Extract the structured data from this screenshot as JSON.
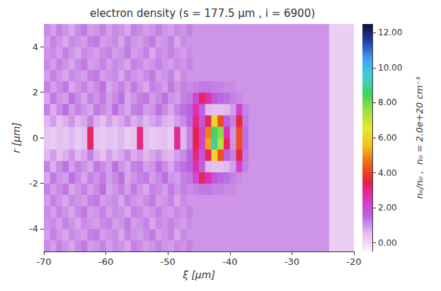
{
  "chart_data": {
    "type": "heatmap",
    "title": "electron density (s = 177.5 µm , i = 6900)",
    "x_label": "ξ [µm]",
    "y_label": "r [µm]",
    "xlim": [
      -70,
      -20
    ],
    "xticks": [
      -70,
      -60,
      -50,
      -40,
      -30,
      -20
    ],
    "ylim": [
      -5,
      5
    ],
    "yticks": [
      -4,
      -2,
      0,
      2,
      4
    ],
    "x": [
      -69.5,
      -68.5,
      -67.5,
      -66.5,
      -65.5,
      -64.5,
      -63.5,
      -62.5,
      -61.5,
      -60.5,
      -59.5,
      -58.5,
      -57.5,
      -56.5,
      -55.5,
      -54.5,
      -53.5,
      -52.5,
      -51.5,
      -50.5,
      -49.5,
      -48.5,
      -47.5,
      -46.5,
      -45.5,
      -44.5,
      -43.5,
      -42.5,
      -41.5,
      -40.5,
      -39.5,
      -38.5,
      -37.5,
      -36.5,
      -35.5,
      -34.5,
      -33.5,
      -32.5,
      -31.5,
      -30.5,
      -29.5,
      -28.5,
      -27.5,
      -26.5,
      -25.5,
      -24.5,
      -23.5,
      -22.5,
      -21.5,
      -20.5
    ],
    "y": [
      -4.75,
      -4.25,
      -3.75,
      -3.25,
      -2.75,
      -2.25,
      -1.75,
      -1.25,
      -0.75,
      -0.25,
      0.25,
      0.75,
      1.25,
      1.75,
      2.25,
      2.75,
      3.25,
      3.75,
      4.25,
      4.75
    ],
    "values": [
      [
        1.1,
        0.9,
        1.2,
        1.0,
        0.8,
        1.1,
        1.3,
        0.9,
        1.0,
        1.2,
        0.9,
        1.1,
        1.0,
        0.8,
        1.2,
        1.1,
        0.9,
        1.0,
        1.2,
        1.0,
        0.9,
        1.1,
        1.0,
        1.2,
        1.0,
        1.0,
        1.0,
        1.0,
        1.0,
        1.0,
        1.0,
        1.0,
        1.0,
        1.0,
        1.0,
        1.0,
        1.0,
        1.0,
        1.0,
        1.0,
        1.0,
        1.0,
        1.0,
        1.0,
        1.0,
        1.0,
        0.2,
        0.2,
        0.2,
        0.2
      ],
      [
        0.9,
        1.2,
        1.0,
        0.8,
        1.1,
        1.0,
        0.9,
        1.2,
        1.3,
        0.9,
        1.0,
        1.1,
        0.8,
        1.2,
        1.0,
        0.9,
        1.1,
        1.3,
        0.9,
        1.0,
        1.2,
        0.8,
        1.1,
        1.0,
        1.0,
        1.0,
        1.0,
        1.0,
        1.0,
        1.0,
        1.0,
        1.0,
        1.0,
        1.0,
        1.0,
        1.0,
        1.0,
        1.0,
        1.0,
        1.0,
        1.0,
        1.0,
        1.0,
        1.0,
        1.0,
        1.0,
        0.2,
        0.2,
        0.2,
        0.2
      ],
      [
        1.0,
        1.1,
        0.9,
        1.2,
        1.0,
        0.8,
        1.1,
        1.0,
        0.9,
        1.1,
        1.2,
        0.9,
        1.0,
        1.3,
        0.9,
        1.0,
        1.2,
        0.8,
        1.1,
        1.0,
        1.2,
        1.0,
        0.9,
        1.1,
        1.0,
        1.0,
        1.0,
        1.0,
        1.0,
        1.0,
        1.0,
        1.0,
        1.0,
        1.0,
        1.0,
        1.0,
        1.0,
        1.0,
        1.0,
        1.0,
        1.0,
        1.0,
        1.0,
        1.0,
        1.0,
        1.0,
        0.2,
        0.2,
        0.2,
        0.2
      ],
      [
        1.1,
        0.9,
        1.2,
        1.0,
        0.8,
        1.1,
        1.3,
        0.9,
        1.0,
        1.2,
        0.9,
        1.1,
        1.0,
        0.8,
        1.2,
        1.1,
        0.9,
        1.0,
        1.2,
        1.0,
        0.9,
        1.1,
        1.0,
        1.2,
        1.0,
        1.0,
        1.0,
        1.0,
        1.0,
        1.0,
        1.0,
        1.0,
        1.0,
        1.0,
        1.0,
        1.0,
        1.0,
        1.0,
        1.0,
        1.0,
        1.0,
        1.0,
        1.0,
        1.0,
        1.0,
        1.0,
        0.2,
        0.2,
        0.2,
        0.2
      ],
      [
        0.9,
        1.2,
        1.0,
        0.8,
        1.1,
        1.0,
        0.9,
        1.2,
        1.3,
        0.9,
        1.0,
        1.1,
        0.8,
        1.2,
        1.0,
        0.9,
        1.1,
        1.3,
        0.9,
        1.0,
        1.2,
        0.8,
        1.1,
        1.0,
        1.0,
        1.0,
        1.0,
        1.0,
        1.0,
        1.0,
        1.0,
        1.0,
        1.0,
        1.0,
        1.0,
        1.0,
        1.0,
        1.0,
        1.0,
        1.0,
        1.0,
        1.0,
        1.0,
        1.0,
        1.0,
        1.0,
        0.2,
        0.2,
        0.2,
        0.2
      ],
      [
        1.2,
        0.9,
        1.1,
        1.3,
        0.8,
        1.0,
        1.2,
        0.9,
        1.1,
        1.4,
        0.8,
        1.0,
        1.2,
        0.9,
        1.3,
        1.0,
        0.8,
        1.2,
        1.1,
        0.9,
        1.3,
        1.0,
        1.2,
        1.1,
        1.2,
        1.3,
        1.3,
        1.2,
        1.2,
        1.1,
        1.1,
        1.0,
        1.0,
        1.0,
        1.0,
        1.0,
        1.0,
        1.0,
        1.0,
        1.0,
        1.0,
        1.0,
        1.0,
        1.0,
        1.0,
        1.0,
        0.2,
        0.2,
        0.2,
        0.2
      ],
      [
        0.8,
        1.3,
        1.0,
        0.9,
        1.4,
        1.1,
        0.8,
        1.2,
        1.0,
        1.3,
        0.9,
        1.1,
        1.4,
        0.8,
        1.0,
        1.2,
        1.3,
        0.9,
        1.1,
        1.4,
        1.0,
        0.9,
        1.2,
        1.3,
        2.0,
        3.2,
        2.6,
        1.8,
        1.5,
        1.4,
        1.2,
        1.1,
        1.0,
        1.0,
        1.0,
        1.0,
        1.0,
        1.0,
        1.0,
        1.0,
        1.0,
        1.0,
        1.0,
        1.0,
        1.0,
        1.0,
        0.2,
        0.2,
        0.2,
        0.2
      ],
      [
        1.2,
        0.7,
        1.1,
        1.4,
        0.9,
        1.2,
        1.0,
        0.8,
        1.3,
        1.1,
        0.9,
        1.4,
        1.0,
        0.8,
        1.2,
        1.3,
        0.9,
        1.0,
        1.4,
        1.1,
        0.8,
        1.2,
        1.4,
        1.6,
        2.6,
        1.6,
        0.6,
        0.5,
        0.5,
        0.6,
        0.9,
        2.2,
        1.2,
        1.0,
        1.0,
        1.0,
        1.0,
        1.0,
        1.0,
        1.0,
        1.0,
        1.0,
        1.0,
        1.0,
        1.0,
        1.0,
        0.2,
        0.2,
        0.2,
        0.2
      ],
      [
        0.6,
        0.9,
        0.5,
        0.7,
        1.0,
        0.6,
        0.8,
        1.2,
        0.7,
        0.5,
        0.9,
        0.6,
        0.8,
        1.1,
        0.7,
        0.9,
        0.6,
        0.8,
        1.0,
        0.7,
        0.6,
        0.9,
        1.1,
        1.5,
        3.0,
        1.8,
        3.2,
        6.0,
        4.2,
        1.6,
        1.2,
        3.6,
        1.3,
        1.0,
        1.0,
        1.0,
        1.0,
        1.0,
        1.0,
        1.0,
        1.0,
        1.0,
        1.0,
        1.0,
        1.0,
        1.0,
        0.2,
        0.2,
        0.2,
        0.2
      ],
      [
        0.4,
        0.3,
        0.5,
        0.4,
        0.6,
        0.3,
        0.5,
        3.2,
        0.4,
        0.3,
        0.5,
        0.4,
        0.6,
        0.3,
        0.4,
        3.0,
        0.5,
        0.3,
        0.4,
        0.5,
        0.3,
        2.8,
        0.6,
        1.2,
        3.4,
        2.2,
        5.2,
        9.0,
        7.2,
        3.2,
        1.0,
        4.2,
        1.4,
        1.0,
        1.0,
        1.0,
        1.0,
        1.0,
        1.0,
        1.0,
        1.0,
        1.0,
        1.0,
        1.0,
        1.0,
        1.0,
        0.2,
        0.2,
        0.2,
        0.2
      ],
      [
        0.4,
        0.3,
        0.5,
        0.4,
        0.6,
        0.3,
        0.5,
        3.2,
        0.4,
        0.3,
        0.5,
        0.4,
        0.6,
        0.3,
        0.4,
        3.0,
        0.5,
        0.3,
        0.4,
        0.5,
        0.3,
        2.8,
        0.6,
        1.2,
        3.4,
        2.2,
        4.8,
        8.4,
        7.8,
        2.6,
        1.0,
        4.2,
        1.4,
        1.0,
        1.0,
        1.0,
        1.0,
        1.0,
        1.0,
        1.0,
        1.0,
        1.0,
        1.0,
        1.0,
        1.0,
        1.0,
        0.2,
        0.2,
        0.2,
        0.2
      ],
      [
        0.6,
        0.9,
        0.5,
        0.7,
        1.0,
        0.6,
        0.8,
        1.2,
        0.7,
        0.5,
        0.9,
        0.6,
        0.8,
        1.1,
        0.7,
        0.9,
        0.6,
        0.8,
        1.0,
        0.7,
        0.6,
        0.9,
        1.1,
        1.5,
        3.0,
        1.8,
        3.2,
        6.0,
        4.2,
        1.6,
        1.2,
        3.6,
        1.3,
        1.0,
        1.0,
        1.0,
        1.0,
        1.0,
        1.0,
        1.0,
        1.0,
        1.0,
        1.0,
        1.0,
        1.0,
        1.0,
        0.2,
        0.2,
        0.2,
        0.2
      ],
      [
        1.2,
        0.7,
        1.1,
        1.4,
        0.9,
        1.2,
        1.0,
        0.8,
        1.3,
        1.1,
        0.9,
        1.4,
        1.0,
        0.8,
        1.2,
        1.3,
        0.9,
        1.0,
        1.4,
        1.1,
        0.8,
        1.2,
        1.4,
        1.6,
        2.6,
        1.6,
        0.6,
        0.5,
        0.5,
        0.6,
        0.9,
        2.2,
        1.2,
        1.0,
        1.0,
        1.0,
        1.0,
        1.0,
        1.0,
        1.0,
        1.0,
        1.0,
        1.0,
        1.0,
        1.0,
        1.0,
        0.2,
        0.2,
        0.2,
        0.2
      ],
      [
        0.8,
        1.3,
        1.0,
        0.9,
        1.4,
        1.1,
        0.8,
        1.2,
        1.0,
        1.3,
        0.9,
        1.1,
        1.4,
        0.8,
        1.0,
        1.2,
        1.3,
        0.9,
        1.1,
        1.4,
        1.0,
        0.9,
        1.2,
        1.3,
        2.0,
        3.2,
        2.6,
        1.8,
        1.5,
        1.4,
        1.2,
        1.1,
        1.0,
        1.0,
        1.0,
        1.0,
        1.0,
        1.0,
        1.0,
        1.0,
        1.0,
        1.0,
        1.0,
        1.0,
        1.0,
        1.0,
        0.2,
        0.2,
        0.2,
        0.2
      ],
      [
        1.2,
        0.9,
        1.1,
        1.3,
        0.8,
        1.0,
        1.2,
        0.9,
        1.1,
        1.4,
        0.8,
        1.0,
        1.2,
        0.9,
        1.3,
        1.0,
        0.8,
        1.2,
        1.1,
        0.9,
        1.3,
        1.0,
        1.2,
        1.1,
        1.2,
        1.3,
        1.3,
        1.2,
        1.2,
        1.1,
        1.1,
        1.0,
        1.0,
        1.0,
        1.0,
        1.0,
        1.0,
        1.0,
        1.0,
        1.0,
        1.0,
        1.0,
        1.0,
        1.0,
        1.0,
        1.0,
        0.2,
        0.2,
        0.2,
        0.2
      ],
      [
        0.9,
        1.2,
        1.0,
        0.8,
        1.1,
        1.0,
        0.9,
        1.2,
        1.3,
        0.9,
        1.0,
        1.1,
        0.8,
        1.2,
        1.0,
        0.9,
        1.1,
        1.3,
        0.9,
        1.0,
        1.2,
        0.8,
        1.1,
        1.0,
        1.0,
        1.0,
        1.0,
        1.0,
        1.0,
        1.0,
        1.0,
        1.0,
        1.0,
        1.0,
        1.0,
        1.0,
        1.0,
        1.0,
        1.0,
        1.0,
        1.0,
        1.0,
        1.0,
        1.0,
        1.0,
        1.0,
        0.2,
        0.2,
        0.2,
        0.2
      ],
      [
        1.1,
        0.9,
        1.2,
        1.0,
        0.8,
        1.1,
        1.3,
        0.9,
        1.0,
        1.2,
        0.9,
        1.1,
        1.0,
        0.8,
        1.2,
        1.1,
        0.9,
        1.0,
        1.2,
        1.0,
        0.9,
        1.1,
        1.0,
        1.2,
        1.0,
        1.0,
        1.0,
        1.0,
        1.0,
        1.0,
        1.0,
        1.0,
        1.0,
        1.0,
        1.0,
        1.0,
        1.0,
        1.0,
        1.0,
        1.0,
        1.0,
        1.0,
        1.0,
        1.0,
        1.0,
        1.0,
        0.2,
        0.2,
        0.2,
        0.2
      ],
      [
        1.0,
        1.1,
        0.9,
        1.2,
        1.0,
        0.8,
        1.1,
        1.0,
        0.9,
        1.1,
        1.2,
        0.9,
        1.0,
        1.3,
        0.9,
        1.0,
        1.2,
        0.8,
        1.1,
        1.0,
        1.2,
        1.0,
        0.9,
        1.1,
        1.0,
        1.0,
        1.0,
        1.0,
        1.0,
        1.0,
        1.0,
        1.0,
        1.0,
        1.0,
        1.0,
        1.0,
        1.0,
        1.0,
        1.0,
        1.0,
        1.0,
        1.0,
        1.0,
        1.0,
        1.0,
        1.0,
        0.2,
        0.2,
        0.2,
        0.2
      ],
      [
        0.9,
        1.2,
        1.0,
        0.8,
        1.1,
        1.0,
        0.9,
        1.2,
        1.3,
        0.9,
        1.0,
        1.1,
        0.8,
        1.2,
        1.0,
        0.9,
        1.1,
        1.3,
        0.9,
        1.0,
        1.2,
        0.8,
        1.1,
        1.0,
        1.0,
        1.0,
        1.0,
        1.0,
        1.0,
        1.0,
        1.0,
        1.0,
        1.0,
        1.0,
        1.0,
        1.0,
        1.0,
        1.0,
        1.0,
        1.0,
        1.0,
        1.0,
        1.0,
        1.0,
        1.0,
        1.0,
        0.2,
        0.2,
        0.2,
        0.2
      ],
      [
        1.1,
        0.9,
        1.2,
        1.0,
        0.8,
        1.1,
        1.3,
        0.9,
        1.0,
        1.2,
        0.9,
        1.1,
        1.0,
        0.8,
        1.2,
        1.1,
        0.9,
        1.0,
        1.2,
        1.0,
        0.9,
        1.1,
        1.0,
        1.2,
        1.0,
        1.0,
        1.0,
        1.0,
        1.0,
        1.0,
        1.0,
        1.0,
        1.0,
        1.0,
        1.0,
        1.0,
        1.0,
        1.0,
        1.0,
        1.0,
        1.0,
        1.0,
        1.0,
        1.0,
        1.0,
        1.0,
        0.2,
        0.2,
        0.2,
        0.2
      ]
    ],
    "colorbar": {
      "label": "nₑ/n₀ ,  n₀ = 2.0e+20 cm⁻³",
      "range": [
        -0.5,
        12.5
      ],
      "ticks": [
        {
          "value": 0,
          "label": "0.00"
        },
        {
          "value": 2,
          "label": "2.00"
        },
        {
          "value": 4,
          "label": "4.00"
        },
        {
          "value": 6,
          "label": "6.00"
        },
        {
          "value": 8,
          "label": "8.00"
        },
        {
          "value": 10,
          "label": "10.00"
        },
        {
          "value": 12,
          "label": "12.00"
        }
      ]
    }
  }
}
